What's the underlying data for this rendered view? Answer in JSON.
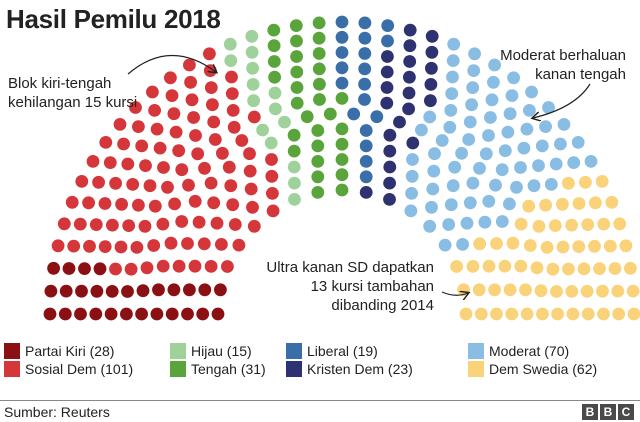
{
  "title": "Hasil Pemilu 2018",
  "chart_data": {
    "type": "parliament",
    "title": "Hasil Pemilu 2018",
    "total_seats": 349,
    "parties": [
      {
        "name": "Partai Kiri",
        "seats": 28,
        "color": "#8b1013"
      },
      {
        "name": "Sosial Dem",
        "seats": 101,
        "color": "#d5363a"
      },
      {
        "name": "Hijau",
        "seats": 15,
        "color": "#9fd29b"
      },
      {
        "name": "Tengah",
        "seats": 31,
        "color": "#5aa43c"
      },
      {
        "name": "Liberal",
        "seats": 19,
        "color": "#3a6ea8"
      },
      {
        "name": "Kristen Dem",
        "seats": 23,
        "color": "#2f3270"
      },
      {
        "name": "Moderat",
        "seats": 70,
        "color": "#89bde3"
      },
      {
        "name": "Dem Swedia",
        "seats": 62,
        "color": "#fad27a"
      }
    ],
    "legend_position": "bottom",
    "annotations": [
      "Blok kiri-tengah kehilangan 15 kursi",
      "Moderat berhaluan kanan tengah",
      "Ultra kanan SD dapatkan 13 kursi tambahan dibanding 2014"
    ]
  },
  "annotations": {
    "left_lines": [
      "Blok kiri-tengah",
      "kehilangan 15 kursi"
    ],
    "right_lines": [
      "Moderat berhaluan",
      "kanan tengah"
    ],
    "bottom_lines": [
      "Ultra kanan SD dapatkan",
      "13 kursi tambahan",
      "dibanding 2014"
    ]
  },
  "legend": [
    {
      "label": "Partai Kiri (28)",
      "color": "#8b1013"
    },
    {
      "label": "Sosial Dem (101)",
      "color": "#d5363a"
    },
    {
      "label": "Hijau (15)",
      "color": "#9fd29b"
    },
    {
      "label": "Tengah (31)",
      "color": "#5aa43c"
    },
    {
      "label": "Liberal (19)",
      "color": "#3a6ea8"
    },
    {
      "label": "Kristen Dem (23)",
      "color": "#2f3270"
    },
    {
      "label": "Moderat (70)",
      "color": "#89bde3"
    },
    {
      "label": "Dem Swedia (62)",
      "color": "#fad27a"
    }
  ],
  "source": "Sumber: Reuters",
  "logo": {
    "letters": [
      "B",
      "B",
      "C"
    ]
  }
}
